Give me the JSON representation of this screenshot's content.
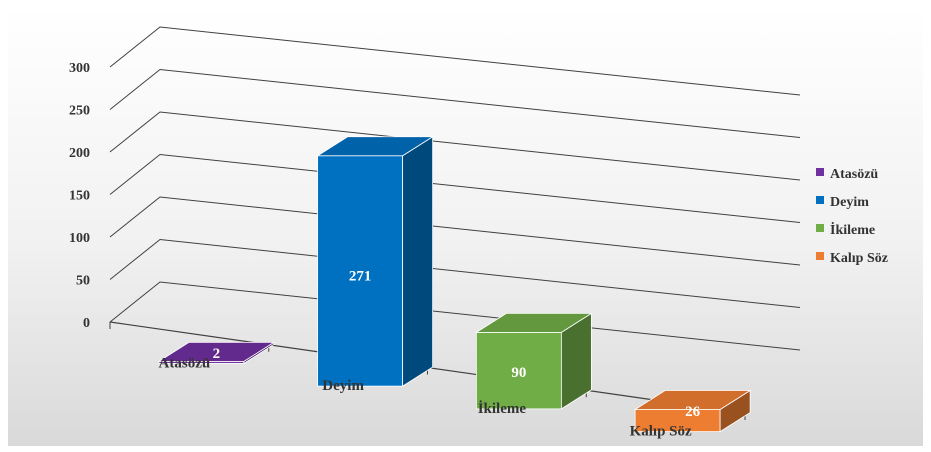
{
  "chart_data": {
    "type": "bar",
    "categories": [
      "Atasözü",
      "Deyim",
      "İkileme",
      "Kalıp Söz"
    ],
    "values": [
      2,
      271,
      90,
      26
    ],
    "data_labels": [
      "2",
      "271",
      "90",
      "26"
    ],
    "ylim": [
      0,
      300
    ],
    "yticks": [
      "0",
      "50",
      "100",
      "150",
      "200",
      "250",
      "300"
    ],
    "ytick_values": [
      0,
      50,
      100,
      150,
      200,
      250,
      300
    ],
    "grid": true,
    "legend_position": "right",
    "legend": [
      "Atasözü",
      "Deyim",
      "İkileme",
      "Kalıp Söz"
    ],
    "colors": {
      "Atasözü": "#7030a0",
      "Deyim": "#0070c0",
      "İkileme": "#70ad47",
      "Kalıp Söz": "#ed7d31"
    },
    "style": "3d-column"
  }
}
